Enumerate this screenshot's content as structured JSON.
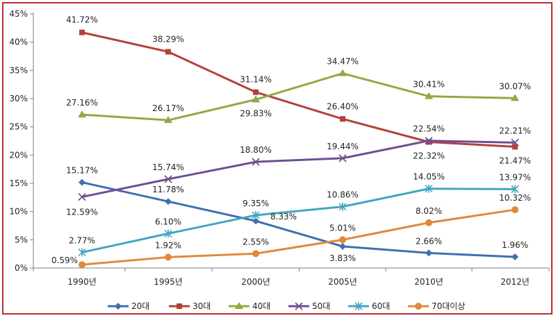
{
  "chart_data": {
    "type": "line",
    "categories": [
      "1990년",
      "1995년",
      "2000년",
      "2005년",
      "2010년",
      "2012년"
    ],
    "y_ticks": [
      "0%",
      "5%",
      "10%",
      "15%",
      "20%",
      "25%",
      "30%",
      "35%",
      "40%",
      "45%"
    ],
    "ylim": [
      0,
      45
    ],
    "y_unit": "%",
    "legend_position": "bottom",
    "grid": false,
    "series": [
      {
        "name": "20대",
        "color": "#3f6fb0",
        "marker": "diamond",
        "values": [
          15.17,
          11.78,
          8.33,
          3.83,
          2.66,
          1.96
        ],
        "labels": [
          "15.17%",
          "11.78%",
          "8.33%",
          "3.83%",
          "2.66%",
          "1.96%"
        ]
      },
      {
        "name": "30대",
        "color": "#b5403a",
        "marker": "square",
        "values": [
          41.72,
          38.29,
          31.14,
          26.4,
          22.32,
          21.47
        ],
        "labels": [
          "41.72%",
          "38.29%",
          "31.14%",
          "26.40%",
          "22.32%",
          "21.47%"
        ]
      },
      {
        "name": "40대",
        "color": "#8faa43",
        "marker": "triangle",
        "values": [
          27.16,
          26.17,
          29.83,
          34.47,
          30.41,
          30.07
        ],
        "labels": [
          "27.16%",
          "26.17%",
          "29.83%",
          "34.47%",
          "30.41%",
          "30.07%"
        ]
      },
      {
        "name": "50대",
        "color": "#6e4f92",
        "marker": "x",
        "values": [
          12.59,
          15.74,
          18.8,
          19.44,
          22.54,
          22.21
        ],
        "labels": [
          "12.59%",
          "15.74%",
          "18.80%",
          "19.44%",
          "22.54%",
          "22.21%"
        ]
      },
      {
        "name": "60대",
        "color": "#43a6c0",
        "marker": "star",
        "values": [
          2.77,
          6.1,
          9.35,
          10.86,
          14.05,
          13.97
        ],
        "labels": [
          "2.77%",
          "6.10%",
          "9.35%",
          "10.86%",
          "14.05%",
          "13.97%"
        ]
      },
      {
        "name": "70대이상",
        "color": "#e0893c",
        "marker": "circle",
        "values": [
          0.59,
          1.92,
          2.55,
          5.01,
          8.02,
          10.32
        ],
        "labels": [
          "0.59%",
          "1.92%",
          "2.55%",
          "5.01%",
          "8.02%",
          "10.32%"
        ]
      }
    ]
  }
}
